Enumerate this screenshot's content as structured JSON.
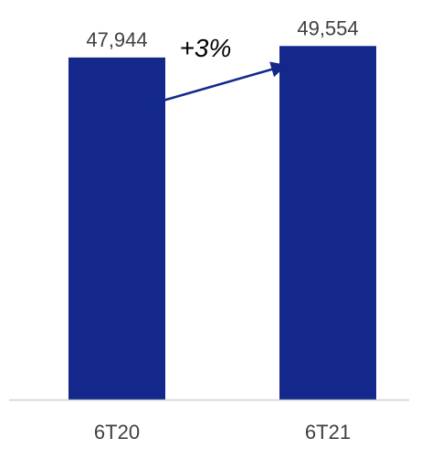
{
  "chart_data": {
    "type": "bar",
    "categories": [
      "6T20",
      "6T21"
    ],
    "values": [
      47944,
      49554
    ],
    "value_labels": [
      "47,944",
      "49,554"
    ],
    "ylim": [
      0,
      56000
    ],
    "title": "",
    "xlabel": "",
    "ylabel": "",
    "grid": false,
    "annotation": {
      "text": "+3%",
      "type": "growth-arrow",
      "from": "6T20",
      "to": "6T21"
    },
    "colors": {
      "bar": "#13288A",
      "arrow": "#13288A",
      "axis": "#D0D0D0",
      "text": "#404040"
    }
  }
}
